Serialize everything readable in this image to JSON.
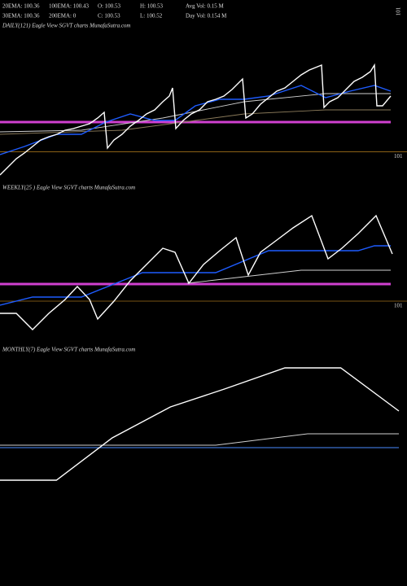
{
  "header": {
    "row1": [
      "20EMA: 100.36",
      "100EMA: 100.43",
      "O: 100.53",
      "H: 100.53",
      "Avg Vol: 0.15  M"
    ],
    "row2": [
      "30EMA: 100.36",
      "200EMA: 0",
      "C: 100.53",
      "L: 100.52",
      "Day Vol: 0.154  M"
    ],
    "corner_label": "101"
  },
  "chart_data": [
    {
      "type": "line",
      "title": "DAILY(121) Eagle  View  SGVT charts MunafaSutra.com",
      "xlim": [
        0,
        50
      ],
      "ylim": [
        100,
        106.125
      ],
      "yticks": [
        101
      ],
      "series": [
        {
          "color": "#ffffff",
          "x": [
            0,
            1,
            2,
            3,
            4,
            5,
            6,
            7,
            8,
            9,
            10,
            11,
            12,
            12.8,
            13.2,
            14,
            15,
            16,
            17,
            18,
            19,
            20,
            20.8,
            21.2,
            21.6,
            22.5,
            23.5,
            24.5,
            25.5,
            26.5,
            27.5,
            28.5,
            29.5,
            29.8,
            30.2,
            31,
            32,
            33,
            34,
            35,
            36,
            37,
            38,
            39,
            39.5,
            39.8,
            40.5,
            41.5,
            42.5,
            43.5,
            44.5,
            45.5,
            46,
            46.3,
            47,
            48
          ],
          "values": [
            100,
            100.35,
            100.7,
            100.945,
            101.225,
            101.505,
            101.645,
            101.75,
            101.925,
            101.995,
            102.1,
            102.205,
            102.45,
            102.695,
            101.155,
            101.505,
            101.75,
            102.1,
            102.345,
            102.625,
            102.8,
            103.15,
            103.395,
            103.745,
            101.995,
            102.345,
            102.625,
            102.8,
            103.15,
            103.255,
            103.395,
            103.675,
            104.025,
            104.13,
            102.45,
            102.625,
            103.045,
            103.325,
            103.605,
            103.745,
            104.025,
            104.305,
            104.515,
            104.655,
            104.725,
            102.905,
            103.15,
            103.325,
            103.675,
            104.025,
            104.2,
            104.445,
            104.725,
            102.975,
            102.975,
            103.395
          ]
        },
        {
          "color": "#1e5cff",
          "x": [
            0,
            3,
            7,
            10,
            13,
            16,
            19,
            21.5,
            24,
            27,
            30,
            33,
            37,
            40,
            43,
            46,
            48
          ],
          "values": [
            100.875,
            101.225,
            101.75,
            101.75,
            102.275,
            102.625,
            102.345,
            102.345,
            102.975,
            103.255,
            103.255,
            103.395,
            103.85,
            103.325,
            103.605,
            103.85,
            103.605
          ]
        },
        {
          "color": "#cfcfcf",
          "x": [
            0,
            10,
            20,
            30,
            40,
            48
          ],
          "values": [
            101.855,
            101.925,
            102.45,
            103.15,
            103.5,
            103.5
          ]
        },
        {
          "color": "#8a7a5a",
          "x": [
            0,
            15,
            30,
            40,
            48
          ],
          "values": [
            101.75,
            101.925,
            102.625,
            102.8,
            102.8
          ]
        },
        {
          "color": "#d040d0",
          "x": [
            0,
            48
          ],
          "values": [
            102.275,
            102.275
          ]
        }
      ]
    },
    {
      "type": "line",
      "title": "WEEKLY(25                    ) Eagle  View  SGVT charts MunafaSutra.com",
      "xlim": [
        0,
        25
      ],
      "ylim": [
        99.6,
        105.55
      ],
      "yticks": [
        101
      ],
      "series": [
        {
          "color": "#ffffff",
          "x": [
            0,
            1,
            2,
            3,
            4,
            4.75,
            5.5,
            6,
            7,
            8,
            9,
            10,
            10.75,
            11.6,
            12.5,
            13.5,
            14.5,
            15.25,
            16,
            17,
            18,
            19.15,
            20.15,
            21,
            22,
            23.1,
            24.1
          ],
          "values": [
            100.475,
            100.475,
            99.775,
            100.475,
            101.07,
            101.63,
            101.07,
            100.23,
            101,
            101.875,
            102.575,
            103.275,
            103.1,
            101.77,
            102.575,
            103.17,
            103.73,
            102.12,
            103.1,
            103.625,
            104.15,
            104.675,
            102.82,
            103.275,
            103.905,
            104.675,
            103.03
          ]
        },
        {
          "color": "#1e5cff",
          "x": [
            0,
            2,
            5,
            7.5,
            8.75,
            13.25,
            16.5,
            22,
            23,
            24
          ],
          "values": [
            100.825,
            101.175,
            101.175,
            101.875,
            102.225,
            102.225,
            103.17,
            103.17,
            103.38,
            103.38
          ]
        },
        {
          "color": "#cfcfcf",
          "x": [
            11.5,
            15,
            18.5,
            24
          ],
          "values": [
            101.77,
            102.05,
            102.33,
            102.33
          ]
        },
        {
          "color": "#d040d0",
          "x": [
            0,
            24
          ],
          "values": [
            101.735,
            101.735
          ]
        }
      ]
    },
    {
      "type": "line",
      "title": "MONTHLY(7) Eagle  View  SGVT charts MunafaSutra.com",
      "xlim": [
        0,
        7
      ],
      "ylim": [
        100,
        106.3
      ],
      "series": [
        {
          "color": "#ffffff",
          "x": [
            0,
            0.97,
            1.93,
            2.93,
            3.86,
            4.9,
            5.86,
            6.86
          ],
          "values": [
            100.7,
            100.7,
            102.52,
            103.85,
            104.62,
            105.53,
            105.53,
            103.675
          ]
        },
        {
          "color": "#cfcfcf",
          "x": [
            0,
            3.71,
            5.29,
            6.86
          ],
          "values": [
            102.205,
            102.205,
            102.695,
            102.695
          ]
        },
        {
          "color": "#4a8cff",
          "x": [
            0,
            6.86
          ],
          "values": [
            102.1,
            102.1
          ]
        }
      ]
    }
  ]
}
